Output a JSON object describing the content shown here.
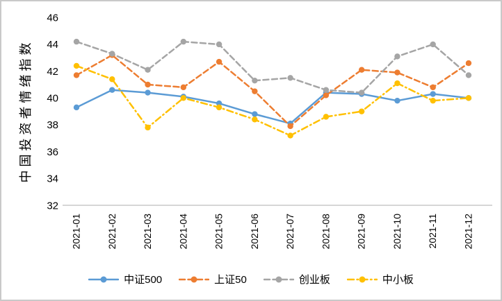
{
  "colors": {
    "frame_border": "#C9C9C9",
    "axis_line": "#D6D6D6",
    "text": "#000000"
  },
  "chart_data": {
    "type": "line",
    "title": "",
    "xlabel": "",
    "ylabel": "中国投资者情绪指数",
    "ylim": [
      32,
      46
    ],
    "ytick_step": 2,
    "grid": false,
    "legend_position": "bottom-center",
    "categories": [
      "2021-01",
      "2021-02",
      "2021-03",
      "2021-04",
      "2021-05",
      "2021-06",
      "2021-07",
      "2021-08",
      "2021-09",
      "2021-10",
      "2021-11",
      "2021-12"
    ],
    "series": [
      {
        "name": "中证500",
        "color": "#5B9BD5",
        "line_style": "solid",
        "values": [
          39.3,
          40.6,
          40.4,
          40.1,
          39.6,
          38.8,
          38.1,
          40.4,
          40.3,
          39.8,
          40.3,
          40.0
        ]
      },
      {
        "name": "上证50",
        "color": "#ED7D31",
        "line_style": "dashed",
        "values": [
          41.7,
          43.2,
          41.0,
          40.8,
          42.7,
          40.5,
          37.9,
          40.2,
          42.1,
          41.9,
          40.8,
          42.6
        ]
      },
      {
        "name": "创业板",
        "color": "#A5A5A5",
        "line_style": "dashed",
        "values": [
          44.2,
          43.3,
          42.1,
          44.2,
          44.0,
          41.3,
          41.5,
          40.6,
          40.4,
          43.1,
          44.0,
          41.7
        ]
      },
      {
        "name": "中小板",
        "color": "#FFC000",
        "line_style": "dashdot",
        "values": [
          42.4,
          41.4,
          37.8,
          40.0,
          39.3,
          38.4,
          37.2,
          38.6,
          39.0,
          41.1,
          39.8,
          40.0
        ]
      }
    ]
  }
}
